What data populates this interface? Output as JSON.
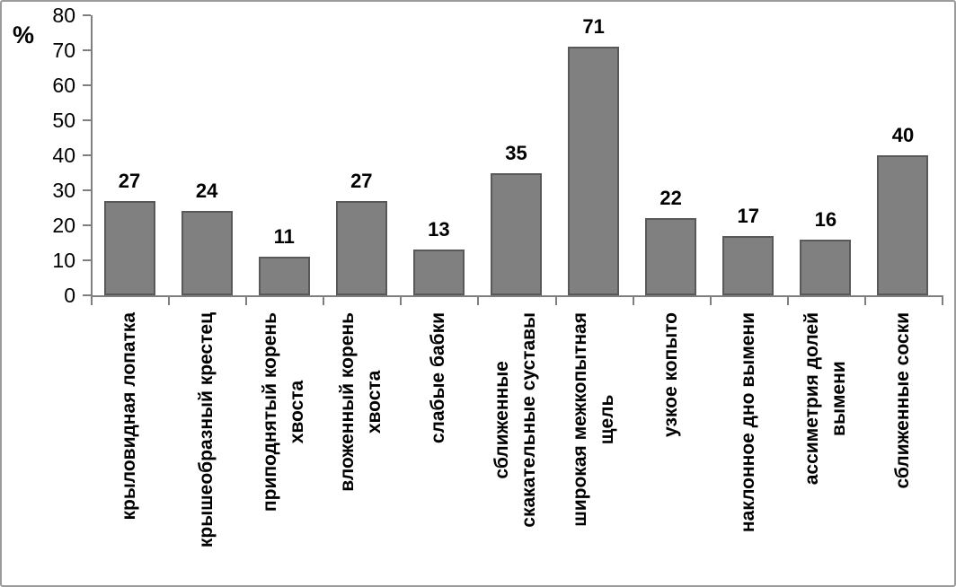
{
  "chart_data": {
    "type": "bar",
    "title": "",
    "xlabel": "",
    "ylabel": "%",
    "ylim": [
      0,
      80
    ],
    "y_ticks": [
      0,
      10,
      20,
      30,
      40,
      50,
      60,
      70,
      80
    ],
    "grid": false,
    "legend": null,
    "data_labels_shown": true,
    "categories": [
      "крыловидная лопатка",
      "крышеобразный крестец",
      "приподнятый корень хвоста",
      "вложенный корень хвоста",
      "слабые бабки",
      "сближенные скакательные суставы",
      "широкая межкопытная щель",
      "узкое копыто",
      "наклонное дно вымени",
      "ассиметрия долей вымени",
      "сближенные соски"
    ],
    "categories_wrapped": [
      [
        "крыловидная лопатка"
      ],
      [
        "крышеобразный крестец"
      ],
      [
        "приподнятый корень",
        "хвоста"
      ],
      [
        "вложенный корень",
        "хвоста"
      ],
      [
        "слабые бабки"
      ],
      [
        "сближенные",
        "скакательные суставы"
      ],
      [
        "широкая межкопытная",
        "щель"
      ],
      [
        "узкое копыто"
      ],
      [
        "наклонное дно вымени"
      ],
      [
        "ассиметрия долей",
        "вымени"
      ],
      [
        "сближенные соски"
      ]
    ],
    "values": [
      27,
      24,
      11,
      27,
      13,
      35,
      71,
      22,
      17,
      16,
      40
    ],
    "colors": {
      "bar_fill": "#808080",
      "bar_border": "#595959",
      "axis": "#7f7f7f",
      "text": "#000000",
      "canvas_border": "#9b9b9b"
    }
  }
}
